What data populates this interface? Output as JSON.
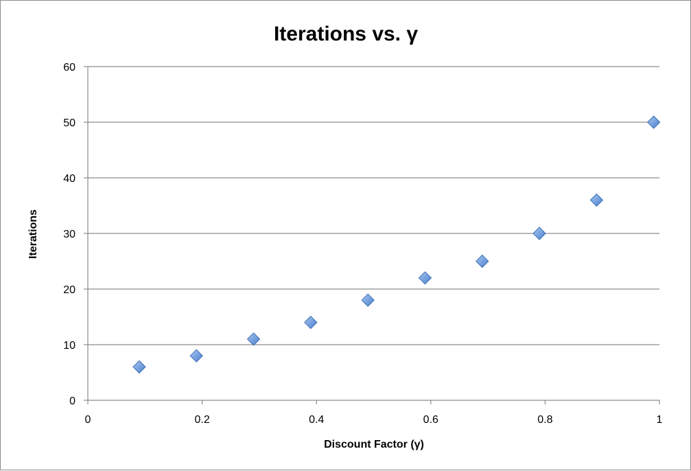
{
  "chart_data": {
    "type": "scatter",
    "title": "Iterations vs. γ",
    "xlabel": "Discount Factor (γ)",
    "ylabel": "Iterations",
    "xlim": [
      0,
      1
    ],
    "ylim": [
      0,
      60
    ],
    "x_ticks": [
      "0",
      "0.2",
      "0.4",
      "0.6",
      "0.8",
      "1"
    ],
    "x_tick_values": [
      0,
      0.2,
      0.4,
      0.6,
      0.8,
      1
    ],
    "y_ticks": [
      "0",
      "10",
      "20",
      "30",
      "40",
      "50",
      "60"
    ],
    "y_tick_values": [
      0,
      10,
      20,
      30,
      40,
      50,
      60
    ],
    "grid": "horizontal",
    "legend": "none",
    "marker": "diamond",
    "marker_color": "#5b8fd6",
    "series": [
      {
        "x": [
          0.09,
          0.19,
          0.29,
          0.39,
          0.49,
          0.59,
          0.69,
          0.79,
          0.89,
          0.99
        ],
        "y": [
          6,
          8,
          11,
          14,
          18,
          22,
          25,
          30,
          36,
          50
        ]
      }
    ]
  }
}
